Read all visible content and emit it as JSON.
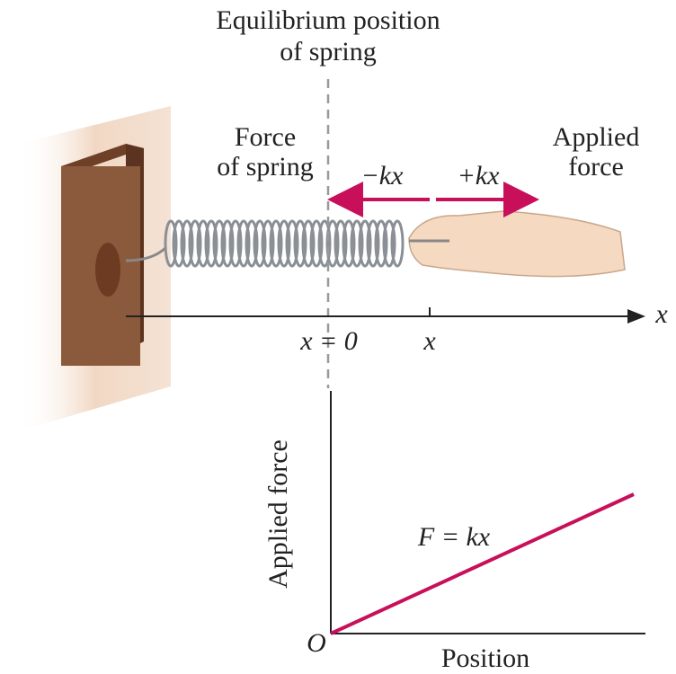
{
  "header": {
    "title_lines": [
      "Equilibrium position",
      "of spring"
    ]
  },
  "labels": {
    "force_of_spring": [
      "Force",
      "of spring"
    ],
    "applied_force": [
      "Applied",
      "force"
    ],
    "spring_force": "−kx",
    "applied": "+kx",
    "origin_tick": "x = 0",
    "position_tick": "x",
    "axis": "x"
  },
  "graph": {
    "y_label": "Applied force",
    "x_label": "Position",
    "line_label": "F = kx",
    "origin": "O"
  }
}
